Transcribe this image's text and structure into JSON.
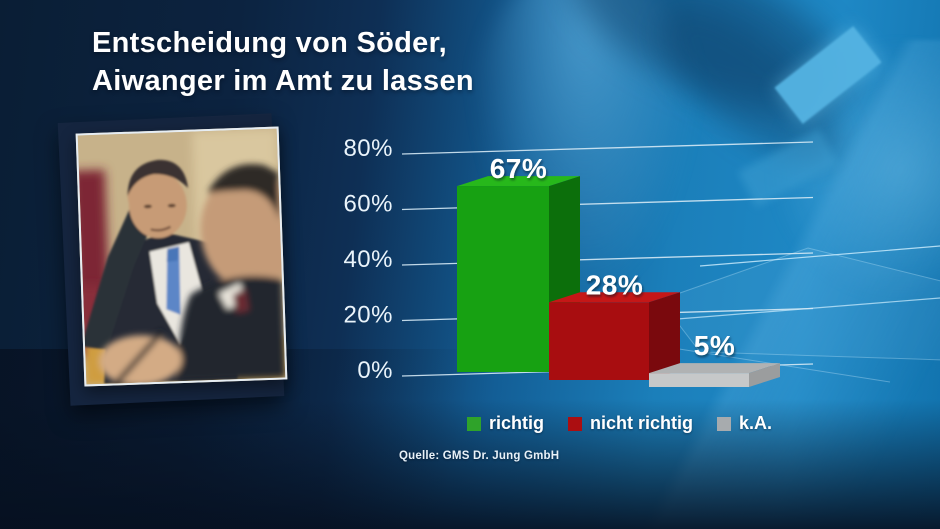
{
  "title": {
    "line1": "Entscheidung von Söder,",
    "line2": "Aiwanger im Amt zu lassen"
  },
  "photo": {
    "description": "Markus Söder resting head on hand, blurred man in foreground"
  },
  "chart_data": {
    "type": "bar",
    "title": "Entscheidung von Söder, Aiwanger im Amt zu lassen",
    "categories": [
      "richtig",
      "nicht richtig",
      "k.A."
    ],
    "values": [
      67,
      28,
      5
    ],
    "value_labels": [
      "67%",
      "28%",
      "5%"
    ],
    "ylim": [
      0,
      80
    ],
    "yticks": [
      {
        "value": 80,
        "label": "80%"
      },
      {
        "value": 60,
        "label": "60%"
      },
      {
        "value": 40,
        "label": "40%"
      },
      {
        "value": 20,
        "label": "20%"
      },
      {
        "value": 0,
        "label": "0%"
      }
    ],
    "grid": true,
    "legend_position": "bottom",
    "series_colors": [
      {
        "front": "#17a112",
        "top": "#27b81b",
        "side": "#0c6f0b"
      },
      {
        "front": "#a80d10",
        "top": "#c51717",
        "side": "#7a090d"
      },
      {
        "front": "#c6c8c9",
        "top": "#b0b2b3",
        "side": "#9b9d9e"
      }
    ],
    "legend_swatches": [
      "#2fa32a",
      "#ab0e11",
      "#a7abae"
    ],
    "gridline_color": "#d5e9f5"
  },
  "source": "Quelle: GMS Dr. Jung GmbH"
}
